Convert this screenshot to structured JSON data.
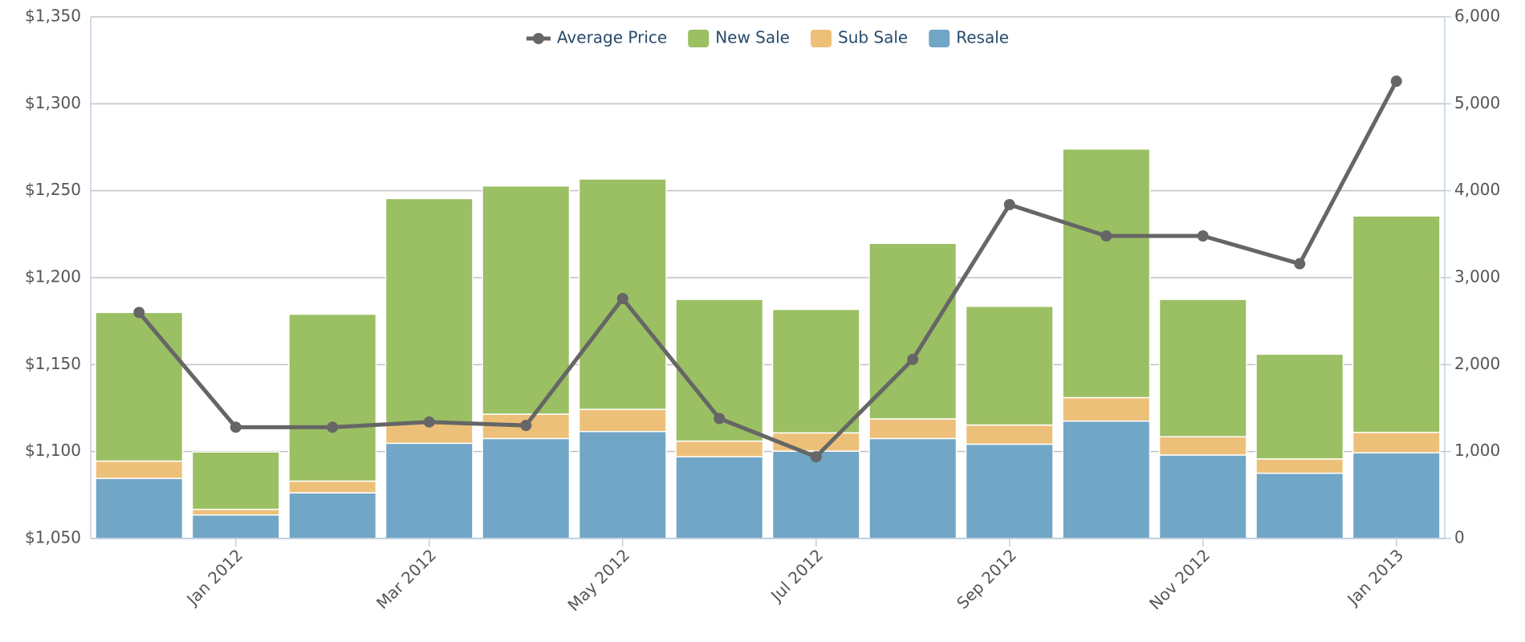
{
  "chart_data": {
    "type": "bar",
    "categories": [
      null,
      "Jan 2012",
      null,
      "Mar 2012",
      null,
      "May 2012",
      null,
      "Jul 2012",
      null,
      "Sep 2012",
      null,
      "Nov 2012",
      null,
      "Jan 2013"
    ],
    "series": [
      {
        "name": "Average Price",
        "type": "line",
        "axis": "y",
        "color": "#666666",
        "values": [
          1180,
          1114,
          1114,
          1117,
          1115,
          1188,
          1119,
          1097,
          1153,
          1242,
          1224,
          1224,
          1208,
          1313
        ]
      },
      {
        "name": "New Sale",
        "axis": "y2",
        "color": "#9bbf63",
        "values": [
          1710,
          660,
          1920,
          2580,
          2625,
          2650,
          1630,
          1420,
          2020,
          1365,
          2860,
          1580,
          1205,
          2490
        ]
      },
      {
        "name": "Sub Sale",
        "axis": "y2",
        "color": "#edc07a",
        "values": [
          200,
          65,
          135,
          235,
          280,
          255,
          180,
          210,
          225,
          220,
          270,
          210,
          165,
          235
        ]
      },
      {
        "name": "Resale",
        "axis": "y2",
        "color": "#71a6c6",
        "values": [
          690,
          270,
          525,
          1095,
          1150,
          1230,
          940,
          1005,
          1150,
          1085,
          1350,
          960,
          750,
          985
        ]
      }
    ],
    "ylim": [
      1050,
      1350
    ],
    "yticks": [
      {
        "value": 1050,
        "label": "$1,050"
      },
      {
        "value": 1100,
        "label": "$1,100"
      },
      {
        "value": 1150,
        "label": "$1,150"
      },
      {
        "value": 1200,
        "label": "$1,200"
      },
      {
        "value": 1250,
        "label": "$1,250"
      },
      {
        "value": 1300,
        "label": "$1,300"
      },
      {
        "value": 1350,
        "label": "$1,350"
      }
    ],
    "y2lim": [
      0,
      6000
    ],
    "y2ticks": [
      0,
      {
        "value": 1000,
        "label": "1,000"
      },
      {
        "value": 2000,
        "label": "2,000"
      },
      {
        "value": 3000,
        "label": "3,000"
      },
      {
        "value": 4000,
        "label": "4,000"
      },
      {
        "value": 5000,
        "label": "5,000"
      },
      {
        "value": 6000,
        "label": "6,000"
      }
    ],
    "grid": true,
    "legend": "top"
  }
}
